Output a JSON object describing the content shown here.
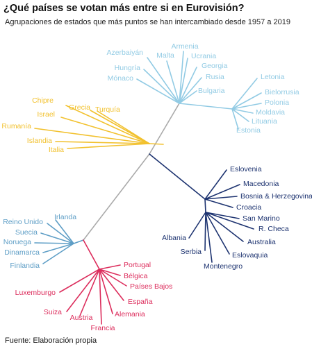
{
  "title": "¿Qué países se votan más entre si en Eurovisión?",
  "subtitle": "Agrupaciones de estados que más puntos se han intercambiado desde 1957 a 2019",
  "source": "Fuente: Elaboración propia",
  "colors": {
    "trunk": "#aaaaaa",
    "light_blue": "#92cbe4",
    "gold": "#f2c12e",
    "steel_blue": "#5e9ec6",
    "crimson": "#dc2d5c",
    "navy": "#1d3370"
  },
  "clusters": [
    {
      "name": "east",
      "color": "light_blue",
      "groups": [
        {
          "id": "caucasus",
          "leaves": [
            "Azerbaiyán",
            "Malta",
            "Armenia",
            "Ucrania",
            "Georgia",
            "Hungría",
            "Mónaco",
            "Rusia",
            "Bulgaria"
          ]
        },
        {
          "id": "baltic",
          "leaves": [
            "Letonia",
            "Bielorrusia",
            "Polonia",
            "Moldavia",
            "Lituania",
            "Estonia"
          ]
        }
      ]
    },
    {
      "name": "mediterranean",
      "color": "gold",
      "groups": [
        {
          "id": "mediterranean",
          "leaves": [
            "Chipre",
            "Grecia",
            "Israel",
            "Turquía",
            "Rumanía",
            "Islandia",
            "Italia"
          ]
        }
      ]
    },
    {
      "name": "nordic",
      "color": "steel_blue",
      "groups": [
        {
          "id": "nordic",
          "leaves": [
            "Reino Unido",
            "Irlanda",
            "Suecia",
            "Noruega",
            "Dinamarca",
            "Finlandia"
          ]
        }
      ]
    },
    {
      "name": "western",
      "color": "crimson",
      "groups": [
        {
          "id": "western",
          "leaves": [
            "Portugal",
            "Bélgica",
            "Países Bajos",
            "Luxemburgo",
            "España",
            "Suiza",
            "Alemania",
            "Austria",
            "Francia"
          ]
        }
      ]
    },
    {
      "name": "balkan",
      "color": "navy",
      "groups": [
        {
          "id": "balkan_north",
          "leaves": [
            "Eslovenia",
            "Macedonia",
            "Bosnia & Herzegovina",
            "Croacia"
          ]
        },
        {
          "id": "balkan_south",
          "leaves": [
            "San Marino",
            "R. Checa",
            "Albania",
            "Australia",
            "Serbia",
            "Eslovaquia",
            "Montenegro"
          ]
        }
      ]
    }
  ]
}
